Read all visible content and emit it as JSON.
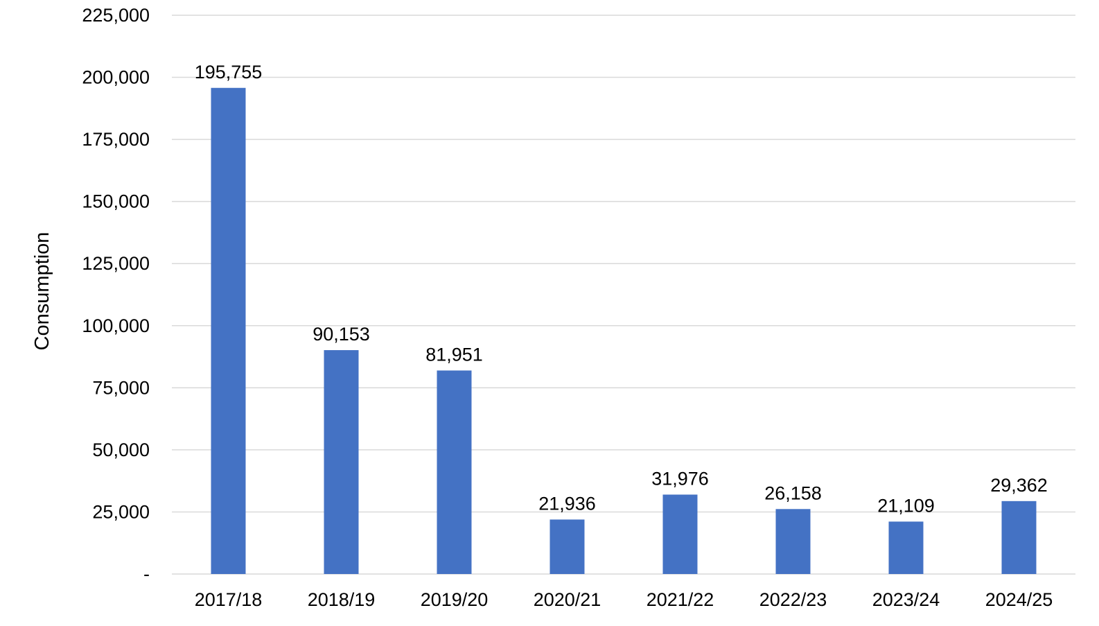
{
  "chart_data": {
    "type": "bar",
    "ylabel": "Consumption",
    "xlabel": "",
    "ylim": [
      0,
      225000
    ],
    "yticks": [
      0,
      25000,
      50000,
      75000,
      100000,
      125000,
      150000,
      175000,
      200000,
      225000
    ],
    "ytick_labels": [
      "-",
      "25,000",
      "50,000",
      "75,000",
      "100,000",
      "125,000",
      "150,000",
      "175,000",
      "200,000",
      "225,000"
    ],
    "categories": [
      "2017/18",
      "2018/19",
      "2019/20",
      "2020/21",
      "2021/22",
      "2022/23",
      "2023/24",
      "2024/25"
    ],
    "values": [
      195755,
      90153,
      81951,
      21936,
      31976,
      26158,
      21109,
      29362
    ],
    "data_labels": [
      "195,755",
      "90,153",
      "81,951",
      "21,936",
      "31,976",
      "26,158",
      "21,109",
      "29,362"
    ],
    "bar_color": "#4472C4",
    "grid": true,
    "legend": "none"
  }
}
